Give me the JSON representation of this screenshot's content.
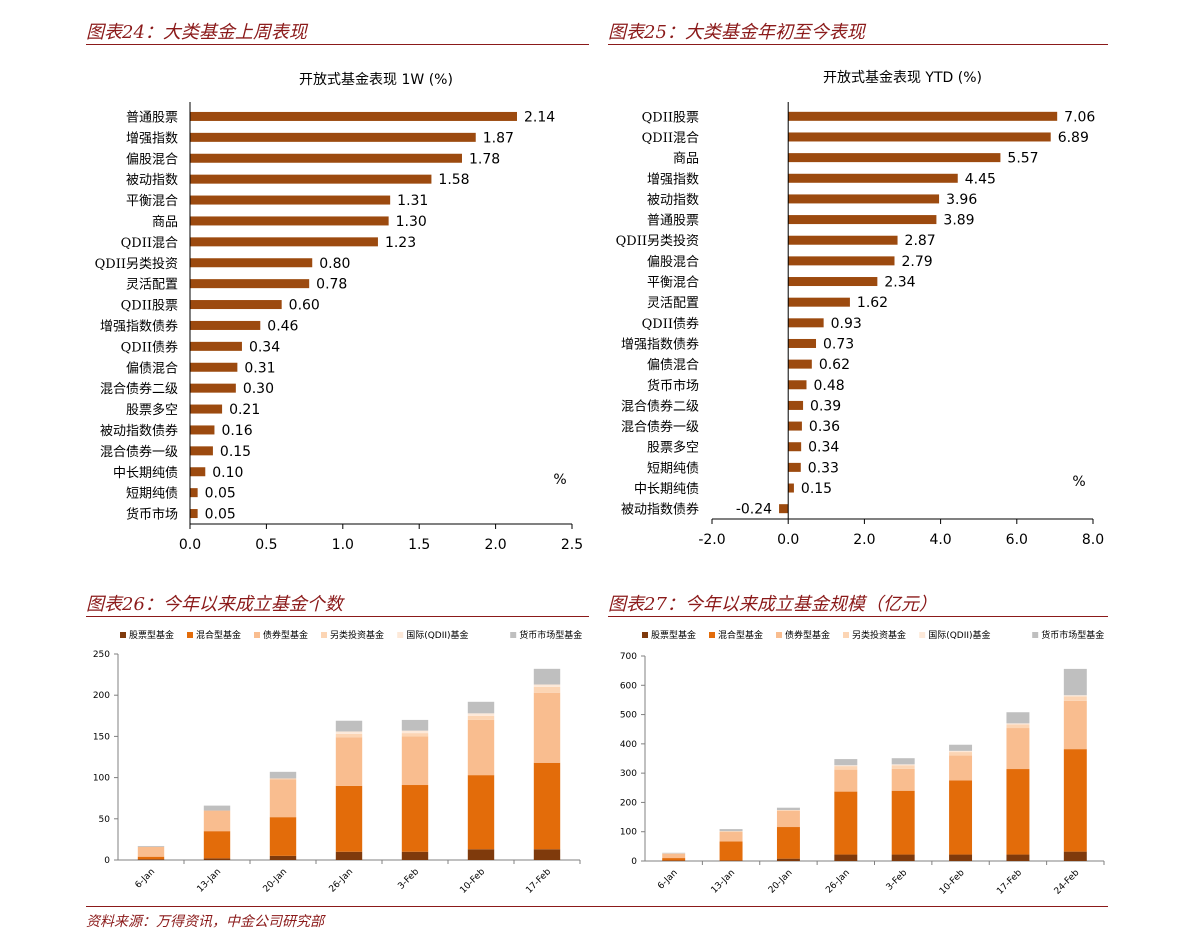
{
  "panels": {
    "p24_title": "图表24：大类基金上周表现",
    "p25_title": "图表25：大类基金年初至今表现",
    "p26_title": "图表26：今年以来成立基金个数",
    "p27_title": "图表27：今年以来成立基金规模（亿元）"
  },
  "source_note": "资料来源：万得资讯，中金公司研究部",
  "colors": {
    "brown": "#9c4a0f",
    "title_red": "#8b1a1a",
    "stock": "#7f3a0c",
    "mixed": "#e36c0a",
    "bond": "#f9bd8f",
    "alt": "#fcd5b4",
    "qdii": "#fde9d9",
    "money": "#bfbfbf"
  },
  "chart_data": [
    {
      "type": "bar",
      "orientation": "horizontal",
      "title": "开放式基金表现 1W (%)",
      "unit_label": "%",
      "categories": [
        "普通股票",
        "增强指数",
        "偏股混合",
        "被动指数",
        "平衡混合",
        "商品",
        "QDII混合",
        "QDII另类投资",
        "灵活配置",
        "QDII股票",
        "增强指数债券",
        "QDII债券",
        "偏债混合",
        "混合债券二级",
        "股票多空",
        "被动指数债券",
        "混合债券一级",
        "中长期纯债",
        "短期纯债",
        "货币市场"
      ],
      "values": [
        2.14,
        1.87,
        1.78,
        1.58,
        1.31,
        1.3,
        1.23,
        0.8,
        0.78,
        0.6,
        0.46,
        0.34,
        0.31,
        0.3,
        0.21,
        0.16,
        0.15,
        0.1,
        0.05,
        0.05
      ],
      "labels": [
        "2.14",
        "1.87",
        "1.78",
        "1.58",
        "1.31",
        "1.30",
        "1.23",
        "0.80",
        "0.78",
        "0.60",
        "0.46",
        "0.34",
        "0.31",
        "0.30",
        "0.21",
        "0.16",
        "0.15",
        "0.10",
        "0.05",
        "0.05"
      ],
      "xlim": [
        0,
        2.5
      ],
      "xticks": [
        "0.0",
        "0.5",
        "1.0",
        "1.5",
        "2.0",
        "2.5"
      ]
    },
    {
      "type": "bar",
      "orientation": "horizontal",
      "title": "开放式基金表现 YTD (%)",
      "unit_label": "%",
      "categories": [
        "QDII股票",
        "QDII混合",
        "商品",
        "增强指数",
        "被动指数",
        "普通股票",
        "QDII另类投资",
        "偏股混合",
        "平衡混合",
        "灵活配置",
        "QDII债券",
        "增强指数债券",
        "偏债混合",
        "货币市场",
        "混合债券二级",
        "混合债券一级",
        "股票多空",
        "短期纯债",
        "中长期纯债",
        "被动指数债券"
      ],
      "values": [
        7.06,
        6.89,
        5.57,
        4.45,
        3.96,
        3.89,
        2.87,
        2.79,
        2.34,
        1.62,
        0.93,
        0.73,
        0.62,
        0.48,
        0.39,
        0.36,
        0.34,
        0.33,
        0.15,
        -0.24
      ],
      "labels": [
        "7.06",
        "6.89",
        "5.57",
        "4.45",
        "3.96",
        "3.89",
        "2.87",
        "2.79",
        "2.34",
        "1.62",
        "0.93",
        "0.73",
        "0.62",
        "0.48",
        "0.39",
        "0.36",
        "0.34",
        "0.33",
        "0.15",
        "-0.24"
      ],
      "xlim": [
        -2,
        8
      ],
      "xticks": [
        "-2.0",
        "0.0",
        "2.0",
        "4.0",
        "6.0",
        "8.0"
      ]
    },
    {
      "type": "bar",
      "stacked": true,
      "title": "今年以来成立基金个数",
      "categories": [
        "6-Jan",
        "13-Jan",
        "20-Jan",
        "26-Jan",
        "3-Feb",
        "10-Feb",
        "17-Feb"
      ],
      "ylim": [
        0,
        250
      ],
      "yticks": [
        "0",
        "50",
        "100",
        "150",
        "200",
        "250"
      ],
      "series": [
        {
          "name": "股票型基金",
          "values": [
            1,
            2,
            5,
            10,
            10,
            13,
            13
          ]
        },
        {
          "name": "混合型基金",
          "values": [
            3,
            33,
            47,
            80,
            81,
            90,
            105
          ]
        },
        {
          "name": "债券型基金",
          "values": [
            12,
            25,
            46,
            59,
            59,
            67,
            85
          ]
        },
        {
          "name": "另类投资基金",
          "values": [
            0,
            0,
            1,
            4,
            4,
            5,
            7
          ]
        },
        {
          "name": "国际(QDII)基金",
          "values": [
            0,
            0,
            0,
            3,
            3,
            3,
            3
          ]
        },
        {
          "name": "货币市场型基金",
          "values": [
            1,
            6,
            8,
            13,
            13,
            14,
            19
          ]
        }
      ]
    },
    {
      "type": "bar",
      "stacked": true,
      "title": "今年以来成立基金规模（亿元）",
      "categories": [
        "6-Jan",
        "13-Jan",
        "20-Jan",
        "26-Jan",
        "3-Feb",
        "10-Feb",
        "17-Feb",
        "24-Feb"
      ],
      "ylim": [
        0,
        700
      ],
      "yticks": [
        "0",
        "100",
        "200",
        "300",
        "400",
        "500",
        "600",
        "700"
      ],
      "series": [
        {
          "name": "股票型基金",
          "values": [
            2,
            2,
            8,
            22,
            22,
            22,
            22,
            32
          ]
        },
        {
          "name": "混合型基金",
          "values": [
            8,
            65,
            108,
            215,
            218,
            253,
            292,
            350
          ]
        },
        {
          "name": "债券型基金",
          "values": [
            15,
            32,
            55,
            75,
            75,
            85,
            140,
            165
          ]
        },
        {
          "name": "另类投资基金",
          "values": [
            1,
            3,
            3,
            12,
            12,
            12,
            12,
            15
          ]
        },
        {
          "name": "国际(QDII)基金",
          "values": [
            0,
            0,
            0,
            3,
            3,
            4,
            4,
            4
          ]
        },
        {
          "name": "货币市场型基金",
          "values": [
            2,
            7,
            8,
            21,
            21,
            21,
            38,
            90
          ]
        }
      ]
    }
  ]
}
